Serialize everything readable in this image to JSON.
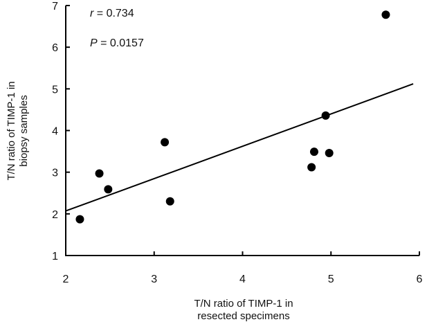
{
  "chart_data": {
    "type": "scatter",
    "title": "",
    "xlabel_lines": [
      "T/N ratio of TIMP-1 in",
      "resected specimens"
    ],
    "ylabel_lines": [
      "T/N ratio of TIMP-1 in",
      "biopsy samples"
    ],
    "xlim": [
      2,
      6
    ],
    "ylim": [
      1,
      7
    ],
    "xticks": [
      "2",
      "3",
      "4",
      "5",
      "6"
    ],
    "yticks": [
      "1",
      "2",
      "3",
      "4",
      "5",
      "6",
      "7"
    ],
    "grid": false,
    "points": [
      {
        "x": 2.16,
        "y": 1.87
      },
      {
        "x": 2.38,
        "y": 2.97
      },
      {
        "x": 2.48,
        "y": 2.59
      },
      {
        "x": 3.12,
        "y": 3.72
      },
      {
        "x": 3.18,
        "y": 2.3
      },
      {
        "x": 4.78,
        "y": 3.12
      },
      {
        "x": 4.81,
        "y": 3.49
      },
      {
        "x": 4.94,
        "y": 4.36
      },
      {
        "x": 4.98,
        "y": 3.46
      },
      {
        "x": 5.62,
        "y": 6.78
      }
    ],
    "regression_line": {
      "x": [
        2,
        5.93
      ],
      "y": [
        2.07,
        5.12
      ]
    },
    "annotations": {
      "r_symbol": "r",
      "r_value": " = 0.734",
      "p_symbol": "P",
      "p_value": " = 0.0157"
    },
    "colors": {
      "points": "#000000",
      "line": "#000000",
      "axes": "#000000"
    }
  }
}
